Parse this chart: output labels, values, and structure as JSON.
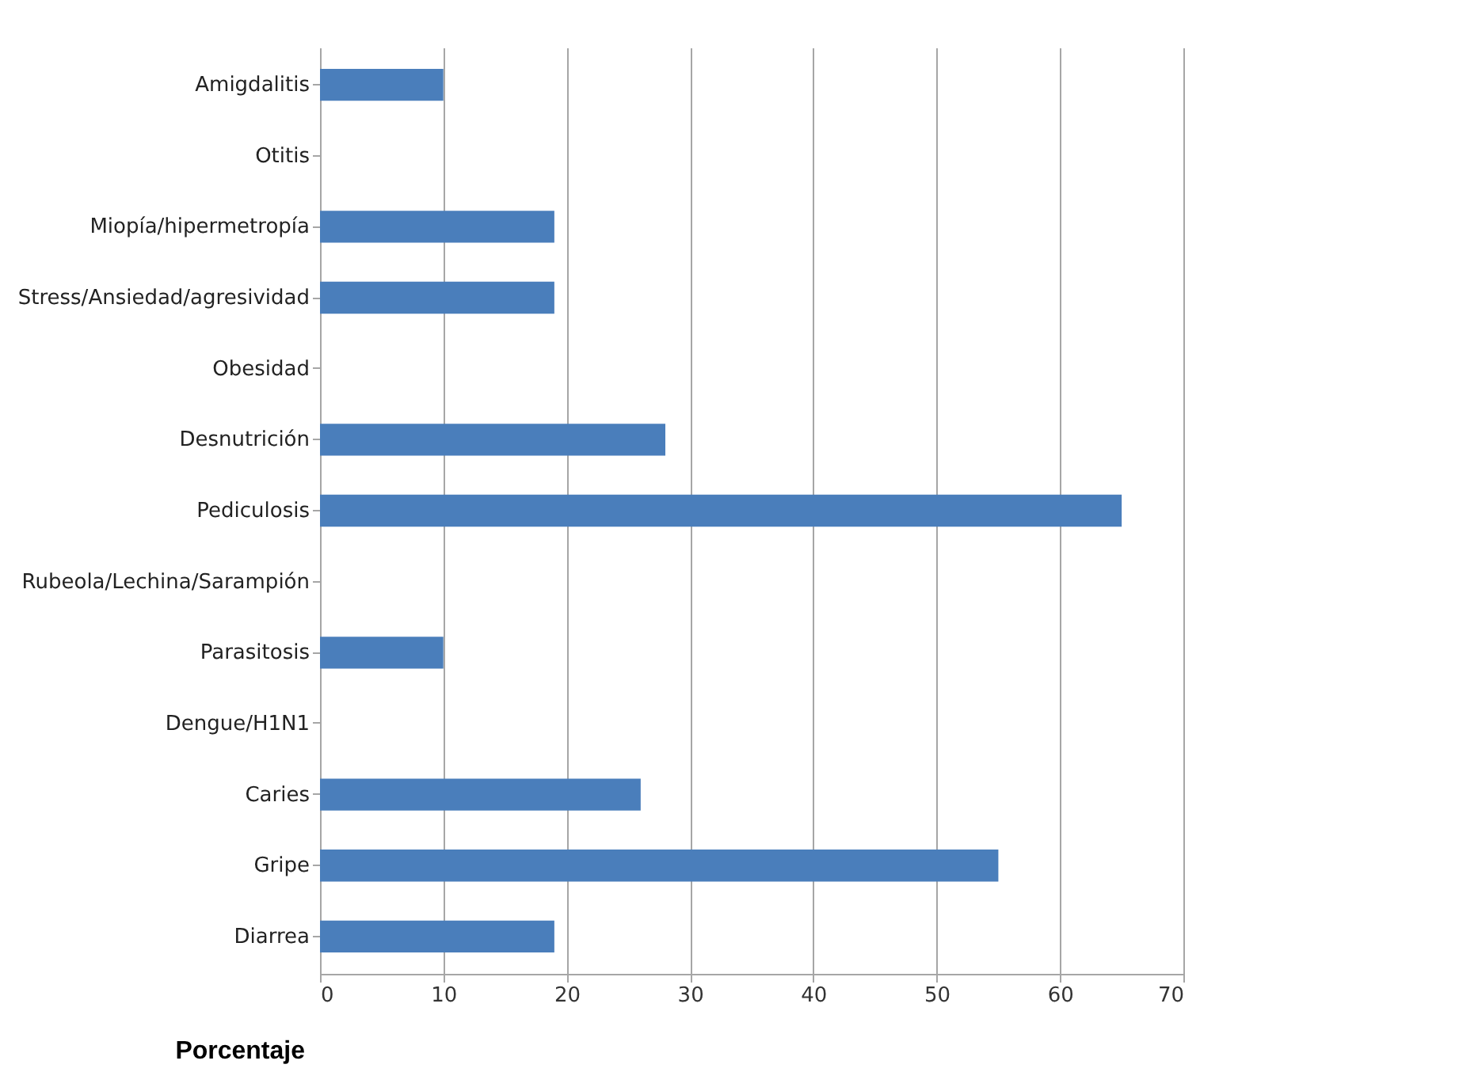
{
  "chart_data": {
    "type": "bar",
    "orientation": "horizontal",
    "xlabel": "Porcentaje",
    "categories": [
      "Amigdalitis",
      "Otitis",
      "Miopía/hipermetropía",
      "Stress/Ansiedad/agresividad",
      "Obesidad",
      "Desnutrición",
      "Pediculosis",
      "Rubeola/Lechina/Sarampión",
      "Parasitosis",
      "Dengue/H1N1",
      "Caries",
      "Gripe",
      "Diarrea"
    ],
    "values": [
      10,
      0,
      19,
      19,
      0,
      28,
      65,
      0,
      10,
      0,
      26,
      55,
      19
    ],
    "color": "#4a7ebb",
    "xlim": [
      0,
      70
    ],
    "xticks": [
      0,
      10,
      20,
      30,
      40,
      50,
      60,
      70
    ],
    "grid": "x"
  }
}
